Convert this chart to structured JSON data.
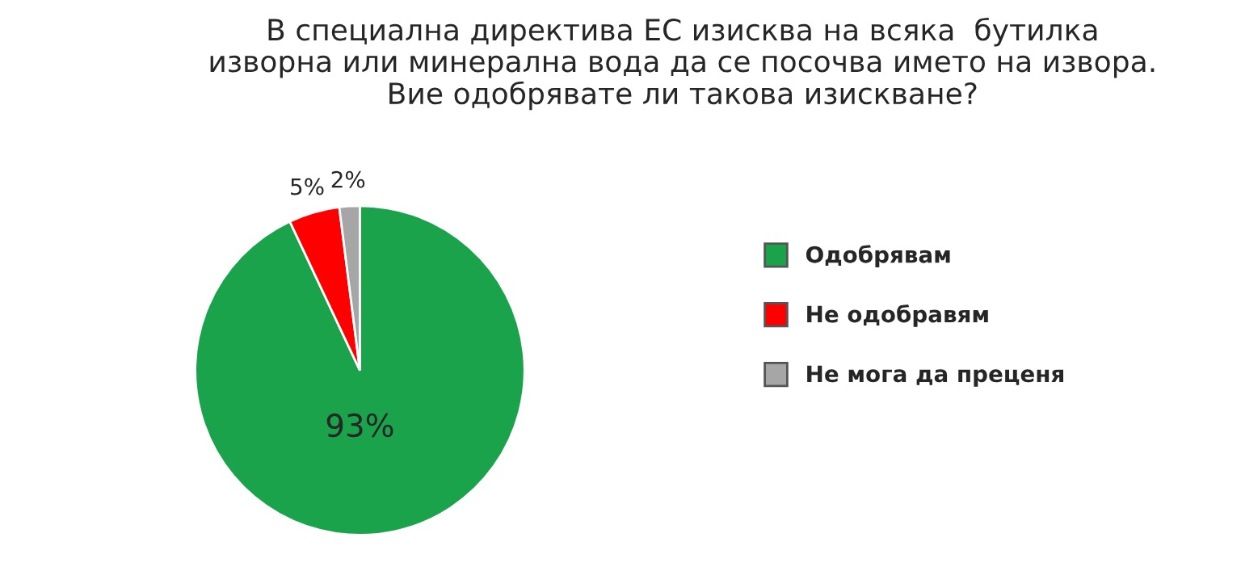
{
  "chart_data": {
    "type": "pie",
    "title": "В специална директива ЕС изисква на всяка  бутилка\nизворна или минерална вода да се посочва името на извора.\nВие одобрявате ли такова изискване?",
    "categories": [
      "Одобрявам",
      "Не одобравям",
      "Не мога да преценя"
    ],
    "values": [
      93,
      5,
      2
    ],
    "colors": [
      "#1aa34a",
      "#ff0000",
      "#a6a6a6"
    ],
    "value_labels": [
      "93%",
      "5%",
      "2%"
    ],
    "legend": "right"
  }
}
